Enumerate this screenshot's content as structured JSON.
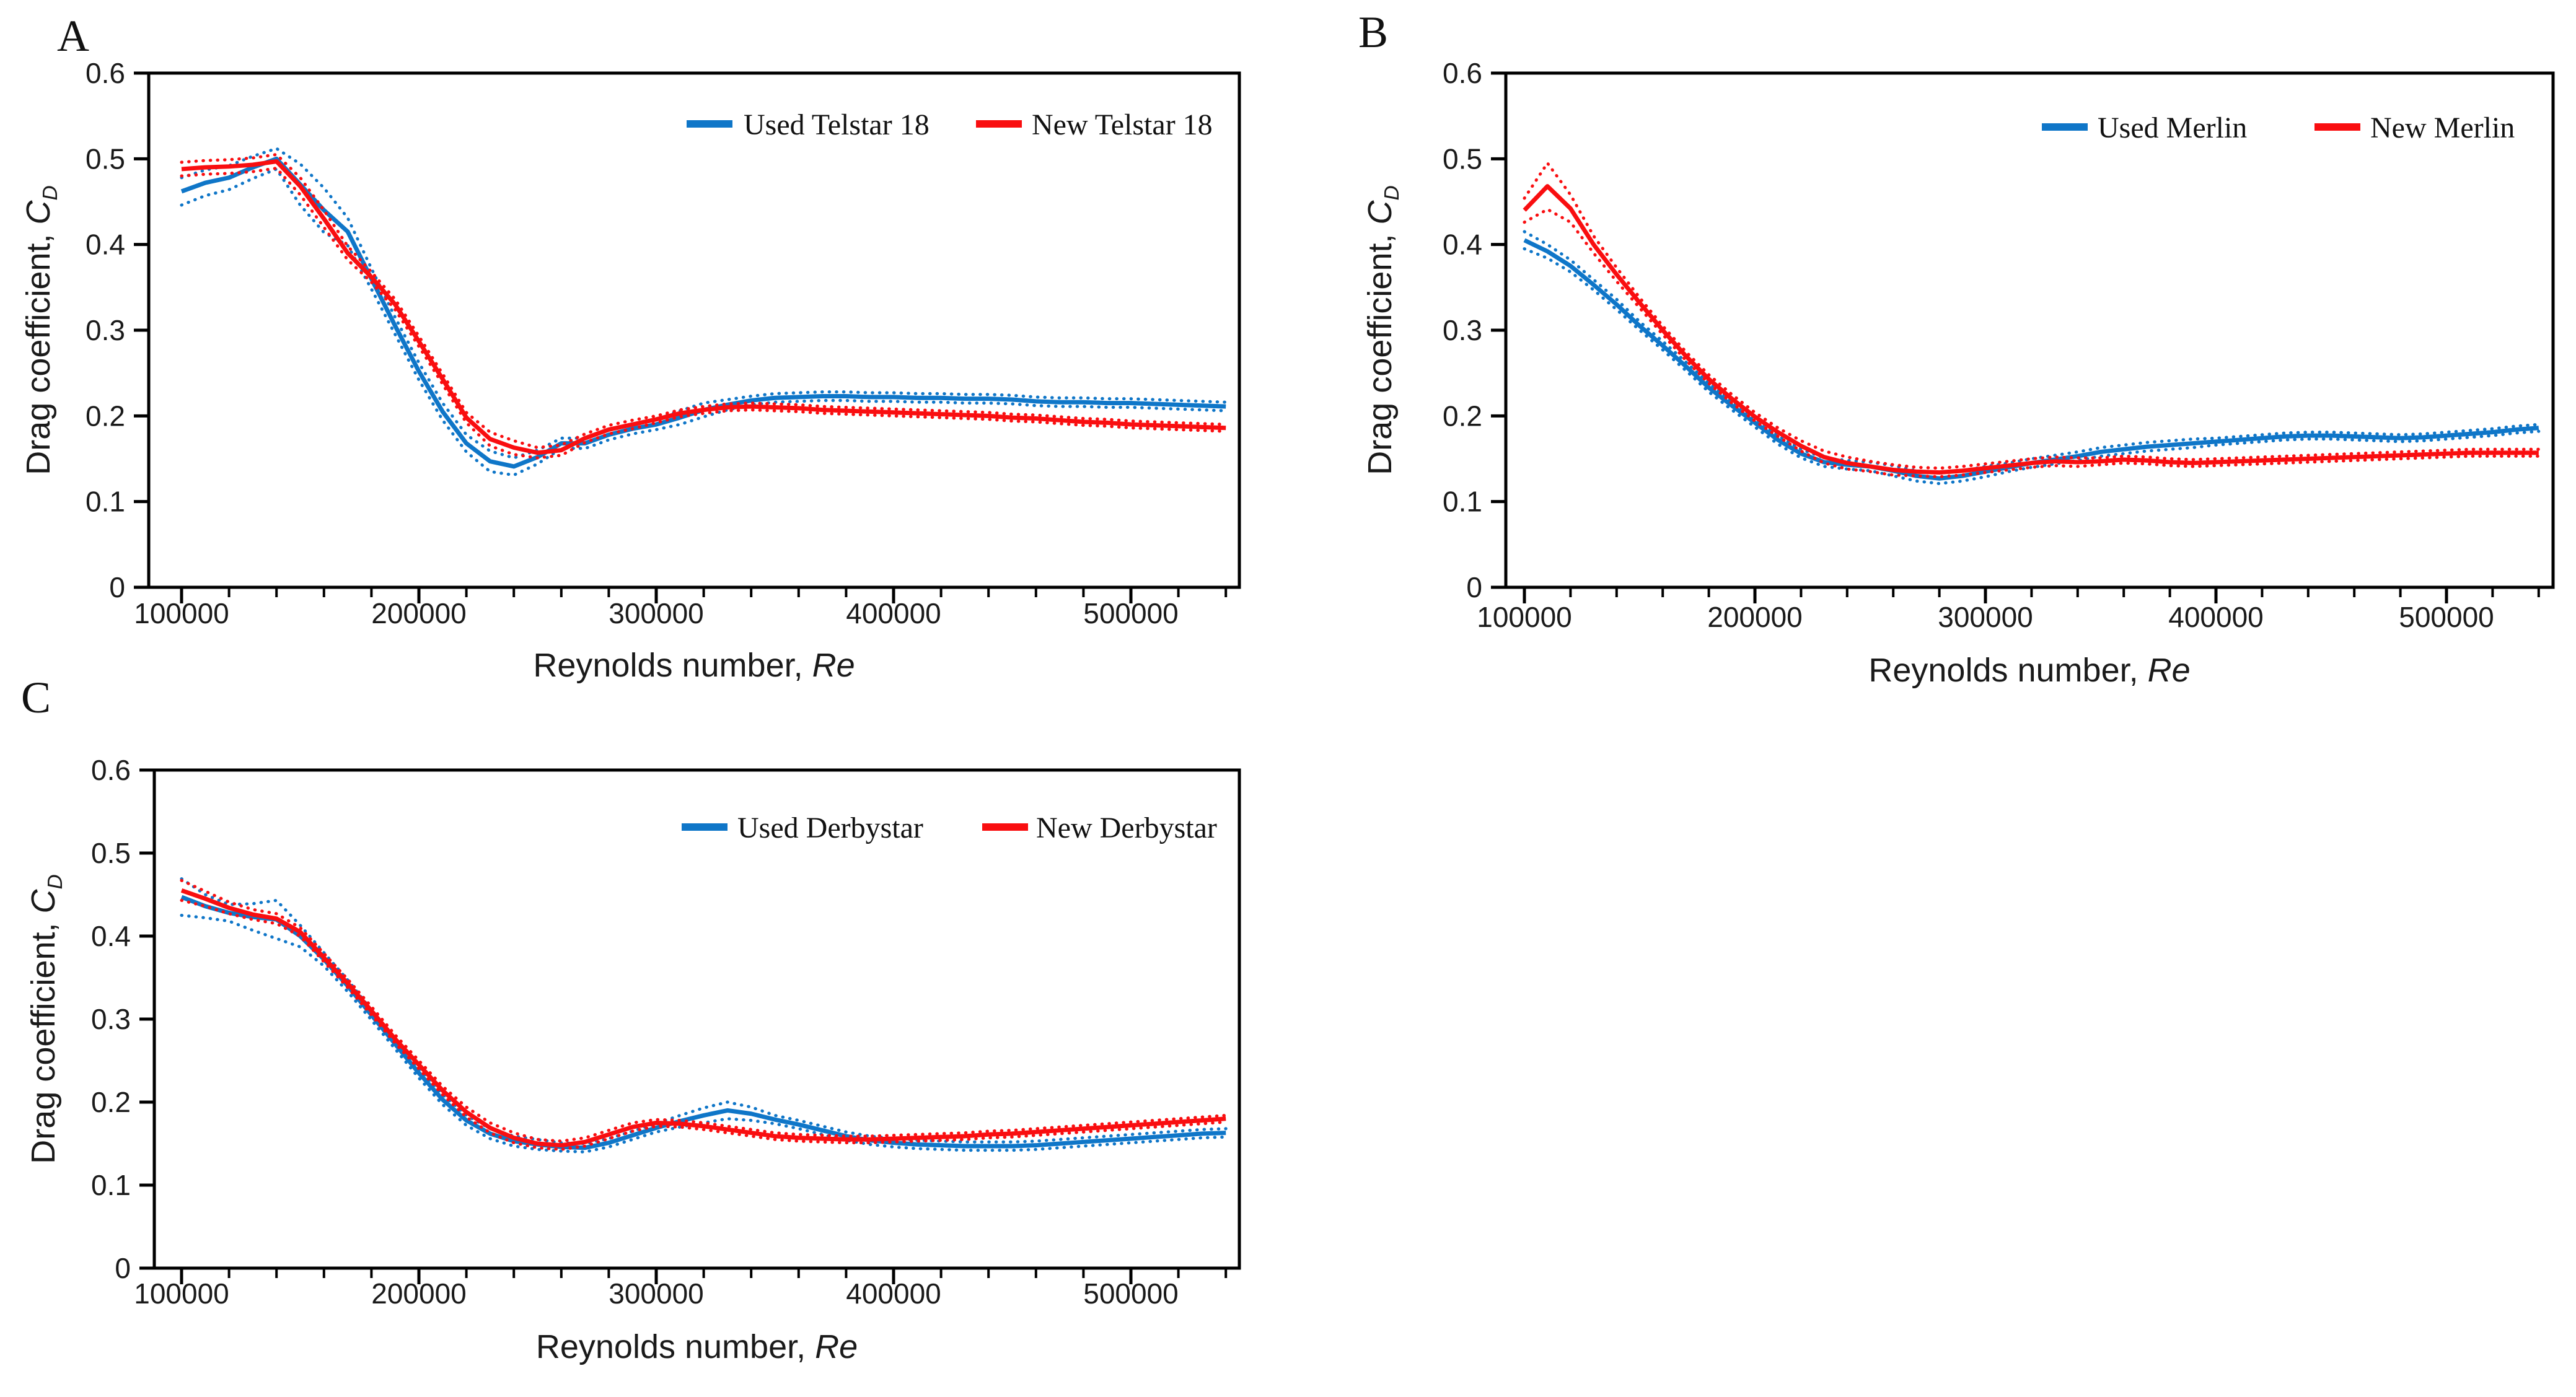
{
  "figure": {
    "background": "#ffffff"
  },
  "colors": {
    "used": "#0F76C8",
    "new": "#F90E10",
    "axis": "#000000",
    "text": "#1a1a1a"
  },
  "panels": [
    {
      "letter": "A"
    },
    {
      "letter": "B"
    },
    {
      "letter": "C"
    }
  ],
  "axis_text": {
    "ylabel_prefix": "Drag coefficient, ",
    "ylabel_symbol": "C",
    "ylabel_subscript": "D",
    "xlabel_prefix": "Reynolds number, ",
    "xlabel_symbol": "Re"
  },
  "chart_data": [
    {
      "type": "line",
      "panel": "A",
      "xlabel": "Reynolds number, Re",
      "ylabel": "Drag coefficient, CD",
      "ylim": [
        0,
        0.6
      ],
      "yticks": [
        0,
        0.1,
        0.2,
        0.3,
        0.4,
        0.5,
        0.6
      ],
      "ytick_labels": [
        "0",
        "0.1",
        "0.2",
        "0.3",
        "0.4",
        "0.5",
        "0.6"
      ],
      "xticks_k": [
        100,
        200,
        300,
        400,
        500
      ],
      "xtick_labels": [
        "100000",
        "200000",
        "300000",
        "400000",
        "500000"
      ],
      "x_minor_step_k": 20,
      "x_max_k": 540,
      "legend_position": "top-right-inside",
      "x_k": [
        100,
        110,
        120,
        130,
        140,
        150,
        160,
        170,
        180,
        190,
        200,
        210,
        220,
        230,
        240,
        250,
        260,
        270,
        280,
        290,
        300,
        310,
        320,
        330,
        340,
        350,
        360,
        370,
        380,
        390,
        400,
        410,
        420,
        430,
        440,
        450,
        460,
        470,
        480,
        490,
        500,
        510,
        520,
        530,
        540
      ],
      "series": [
        {
          "name": "Used Telstar 18",
          "color_key": "used",
          "style": "solid-with-dotted-band",
          "values": [
            0.462,
            0.472,
            0.478,
            0.49,
            0.5,
            0.47,
            0.44,
            0.415,
            0.36,
            0.305,
            0.252,
            0.205,
            0.168,
            0.147,
            0.141,
            0.152,
            0.168,
            0.168,
            0.178,
            0.185,
            0.19,
            0.198,
            0.207,
            0.213,
            0.218,
            0.221,
            0.222,
            0.223,
            0.223,
            0.222,
            0.222,
            0.221,
            0.221,
            0.22,
            0.22,
            0.219,
            0.217,
            0.216,
            0.216,
            0.215,
            0.215,
            0.214,
            0.213,
            0.212,
            0.211
          ],
          "band": [
            0.016,
            0.015,
            0.014,
            0.013,
            0.012,
            0.024,
            0.026,
            0.016,
            0.012,
            0.01,
            0.01,
            0.01,
            0.01,
            0.012,
            0.01,
            0.008,
            0.006,
            0.006,
            0.006,
            0.006,
            0.006,
            0.008,
            0.008,
            0.006,
            0.005,
            0.005,
            0.005,
            0.005,
            0.005,
            0.005,
            0.005,
            0.005,
            0.005,
            0.005,
            0.005,
            0.005,
            0.005,
            0.005,
            0.005,
            0.005,
            0.005,
            0.005,
            0.005,
            0.005,
            0.005
          ]
        },
        {
          "name": "New Telstar 18",
          "color_key": "new",
          "style": "solid-with-dotted-band",
          "values": [
            0.488,
            0.49,
            0.491,
            0.493,
            0.497,
            0.468,
            0.43,
            0.39,
            0.362,
            0.33,
            0.287,
            0.243,
            0.198,
            0.173,
            0.163,
            0.157,
            0.16,
            0.174,
            0.184,
            0.19,
            0.196,
            0.203,
            0.207,
            0.21,
            0.211,
            0.21,
            0.209,
            0.207,
            0.206,
            0.205,
            0.204,
            0.203,
            0.202,
            0.201,
            0.2,
            0.198,
            0.197,
            0.195,
            0.193,
            0.192,
            0.19,
            0.189,
            0.188,
            0.187,
            0.186
          ],
          "band": [
            0.008,
            0.008,
            0.008,
            0.008,
            0.008,
            0.01,
            0.01,
            0.008,
            0.006,
            0.006,
            0.006,
            0.006,
            0.006,
            0.008,
            0.008,
            0.006,
            0.006,
            0.005,
            0.005,
            0.005,
            0.004,
            0.004,
            0.004,
            0.004,
            0.004,
            0.004,
            0.004,
            0.004,
            0.004,
            0.004,
            0.004,
            0.004,
            0.004,
            0.004,
            0.004,
            0.004,
            0.004,
            0.004,
            0.004,
            0.004,
            0.004,
            0.004,
            0.004,
            0.004,
            0.004
          ]
        }
      ]
    },
    {
      "type": "line",
      "panel": "B",
      "xlabel": "Reynolds number, Re",
      "ylabel": "Drag coefficient, CD",
      "ylim": [
        0,
        0.6
      ],
      "yticks": [
        0,
        0.1,
        0.2,
        0.3,
        0.4,
        0.5,
        0.6
      ],
      "ytick_labels": [
        "0",
        "0.1",
        "0.2",
        "0.3",
        "0.4",
        "0.5",
        "0.6"
      ],
      "xticks_k": [
        100,
        200,
        300,
        400,
        500
      ],
      "xtick_labels": [
        "100000",
        "200000",
        "300000",
        "400000",
        "500000"
      ],
      "x_minor_step_k": 20,
      "x_max_k": 540,
      "legend_position": "top-right-inside",
      "x_k": [
        100,
        110,
        120,
        130,
        140,
        150,
        160,
        170,
        180,
        190,
        200,
        210,
        220,
        230,
        240,
        250,
        260,
        270,
        280,
        290,
        300,
        310,
        320,
        330,
        340,
        350,
        360,
        370,
        380,
        390,
        400,
        410,
        420,
        430,
        440,
        450,
        460,
        470,
        480,
        490,
        500,
        510,
        520,
        530,
        540
      ],
      "series": [
        {
          "name": "Used Merlin",
          "color_key": "used",
          "style": "solid-with-dotted-band",
          "values": [
            0.405,
            0.392,
            0.375,
            0.353,
            0.33,
            0.305,
            0.282,
            0.258,
            0.233,
            0.212,
            0.192,
            0.172,
            0.156,
            0.146,
            0.143,
            0.141,
            0.136,
            0.13,
            0.127,
            0.13,
            0.135,
            0.14,
            0.145,
            0.149,
            0.153,
            0.158,
            0.161,
            0.164,
            0.166,
            0.168,
            0.17,
            0.172,
            0.174,
            0.176,
            0.177,
            0.177,
            0.176,
            0.175,
            0.174,
            0.175,
            0.177,
            0.179,
            0.181,
            0.184,
            0.186
          ],
          "band": [
            0.01,
            0.008,
            0.007,
            0.006,
            0.006,
            0.005,
            0.005,
            0.005,
            0.005,
            0.005,
            0.005,
            0.005,
            0.005,
            0.005,
            0.005,
            0.005,
            0.006,
            0.006,
            0.006,
            0.006,
            0.006,
            0.005,
            0.005,
            0.005,
            0.005,
            0.005,
            0.005,
            0.005,
            0.005,
            0.005,
            0.004,
            0.004,
            0.004,
            0.004,
            0.004,
            0.004,
            0.004,
            0.004,
            0.004,
            0.004,
            0.004,
            0.004,
            0.004,
            0.004,
            0.004
          ]
        },
        {
          "name": "New Merlin",
          "color_key": "new",
          "style": "solid-with-dotted-band",
          "values": [
            0.44,
            0.468,
            0.442,
            0.4,
            0.365,
            0.332,
            0.3,
            0.27,
            0.243,
            0.22,
            0.199,
            0.181,
            0.165,
            0.152,
            0.145,
            0.141,
            0.137,
            0.135,
            0.134,
            0.136,
            0.139,
            0.142,
            0.145,
            0.147,
            0.146,
            0.147,
            0.149,
            0.148,
            0.146,
            0.145,
            0.146,
            0.147,
            0.148,
            0.149,
            0.15,
            0.151,
            0.152,
            0.153,
            0.154,
            0.155,
            0.156,
            0.157,
            0.157,
            0.157,
            0.157
          ],
          "band": [
            0.014,
            0.027,
            0.016,
            0.01,
            0.008,
            0.006,
            0.005,
            0.005,
            0.005,
            0.005,
            0.005,
            0.005,
            0.006,
            0.007,
            0.007,
            0.006,
            0.006,
            0.005,
            0.005,
            0.005,
            0.005,
            0.005,
            0.005,
            0.005,
            0.005,
            0.004,
            0.004,
            0.004,
            0.004,
            0.004,
            0.004,
            0.004,
            0.004,
            0.004,
            0.004,
            0.004,
            0.004,
            0.004,
            0.004,
            0.004,
            0.004,
            0.004,
            0.004,
            0.004,
            0.004
          ]
        }
      ]
    },
    {
      "type": "line",
      "panel": "C",
      "xlabel": "Reynolds number, Re",
      "ylabel": "Drag coefficient, CD",
      "ylim": [
        0,
        0.6
      ],
      "yticks": [
        0,
        0.1,
        0.2,
        0.3,
        0.4,
        0.5,
        0.6
      ],
      "ytick_labels": [
        "0",
        "0.1",
        "0.2",
        "0.3",
        "0.4",
        "0.5",
        "0.6"
      ],
      "xticks_k": [
        100,
        200,
        300,
        400,
        500
      ],
      "xtick_labels": [
        "100000",
        "200000",
        "300000",
        "400000",
        "500000"
      ],
      "x_minor_step_k": 20,
      "x_max_k": 540,
      "legend_position": "top-right-inside",
      "x_k": [
        100,
        110,
        120,
        130,
        140,
        150,
        160,
        170,
        180,
        190,
        200,
        210,
        220,
        230,
        240,
        250,
        260,
        270,
        280,
        290,
        300,
        310,
        320,
        330,
        340,
        350,
        360,
        370,
        380,
        390,
        400,
        410,
        420,
        430,
        440,
        450,
        460,
        470,
        480,
        490,
        500,
        510,
        520,
        530,
        540
      ],
      "series": [
        {
          "name": "Used Derbystar",
          "color_key": "used",
          "style": "solid-with-dotted-band",
          "values": [
            0.447,
            0.436,
            0.428,
            0.423,
            0.42,
            0.4,
            0.372,
            0.34,
            0.305,
            0.27,
            0.235,
            0.203,
            0.178,
            0.162,
            0.153,
            0.149,
            0.146,
            0.145,
            0.151,
            0.16,
            0.169,
            0.177,
            0.184,
            0.19,
            0.186,
            0.179,
            0.173,
            0.166,
            0.159,
            0.154,
            0.151,
            0.149,
            0.148,
            0.147,
            0.147,
            0.147,
            0.148,
            0.15,
            0.152,
            0.154,
            0.156,
            0.158,
            0.16,
            0.162,
            0.163
          ],
          "band": [
            0.022,
            0.014,
            0.01,
            0.016,
            0.023,
            0.013,
            0.008,
            0.007,
            0.006,
            0.006,
            0.006,
            0.006,
            0.006,
            0.006,
            0.006,
            0.006,
            0.005,
            0.005,
            0.005,
            0.005,
            0.005,
            0.007,
            0.009,
            0.01,
            0.008,
            0.005,
            0.005,
            0.005,
            0.005,
            0.005,
            0.005,
            0.005,
            0.005,
            0.005,
            0.005,
            0.005,
            0.005,
            0.005,
            0.005,
            0.005,
            0.005,
            0.005,
            0.005,
            0.005,
            0.005
          ]
        },
        {
          "name": "New Derbystar",
          "color_key": "new",
          "style": "solid-with-dotted-band",
          "values": [
            0.455,
            0.445,
            0.434,
            0.426,
            0.421,
            0.405,
            0.374,
            0.343,
            0.31,
            0.276,
            0.245,
            0.214,
            0.188,
            0.169,
            0.157,
            0.15,
            0.148,
            0.152,
            0.161,
            0.17,
            0.175,
            0.174,
            0.171,
            0.167,
            0.163,
            0.159,
            0.157,
            0.156,
            0.155,
            0.155,
            0.156,
            0.157,
            0.158,
            0.159,
            0.161,
            0.162,
            0.164,
            0.166,
            0.168,
            0.17,
            0.172,
            0.174,
            0.176,
            0.178,
            0.18
          ],
          "band": [
            0.012,
            0.009,
            0.007,
            0.006,
            0.006,
            0.005,
            0.005,
            0.005,
            0.005,
            0.005,
            0.005,
            0.005,
            0.006,
            0.006,
            0.006,
            0.005,
            0.005,
            0.005,
            0.005,
            0.005,
            0.004,
            0.004,
            0.004,
            0.004,
            0.004,
            0.004,
            0.004,
            0.004,
            0.004,
            0.004,
            0.004,
            0.004,
            0.004,
            0.004,
            0.004,
            0.004,
            0.004,
            0.004,
            0.004,
            0.004,
            0.004,
            0.004,
            0.004,
            0.004,
            0.004
          ]
        }
      ]
    }
  ]
}
